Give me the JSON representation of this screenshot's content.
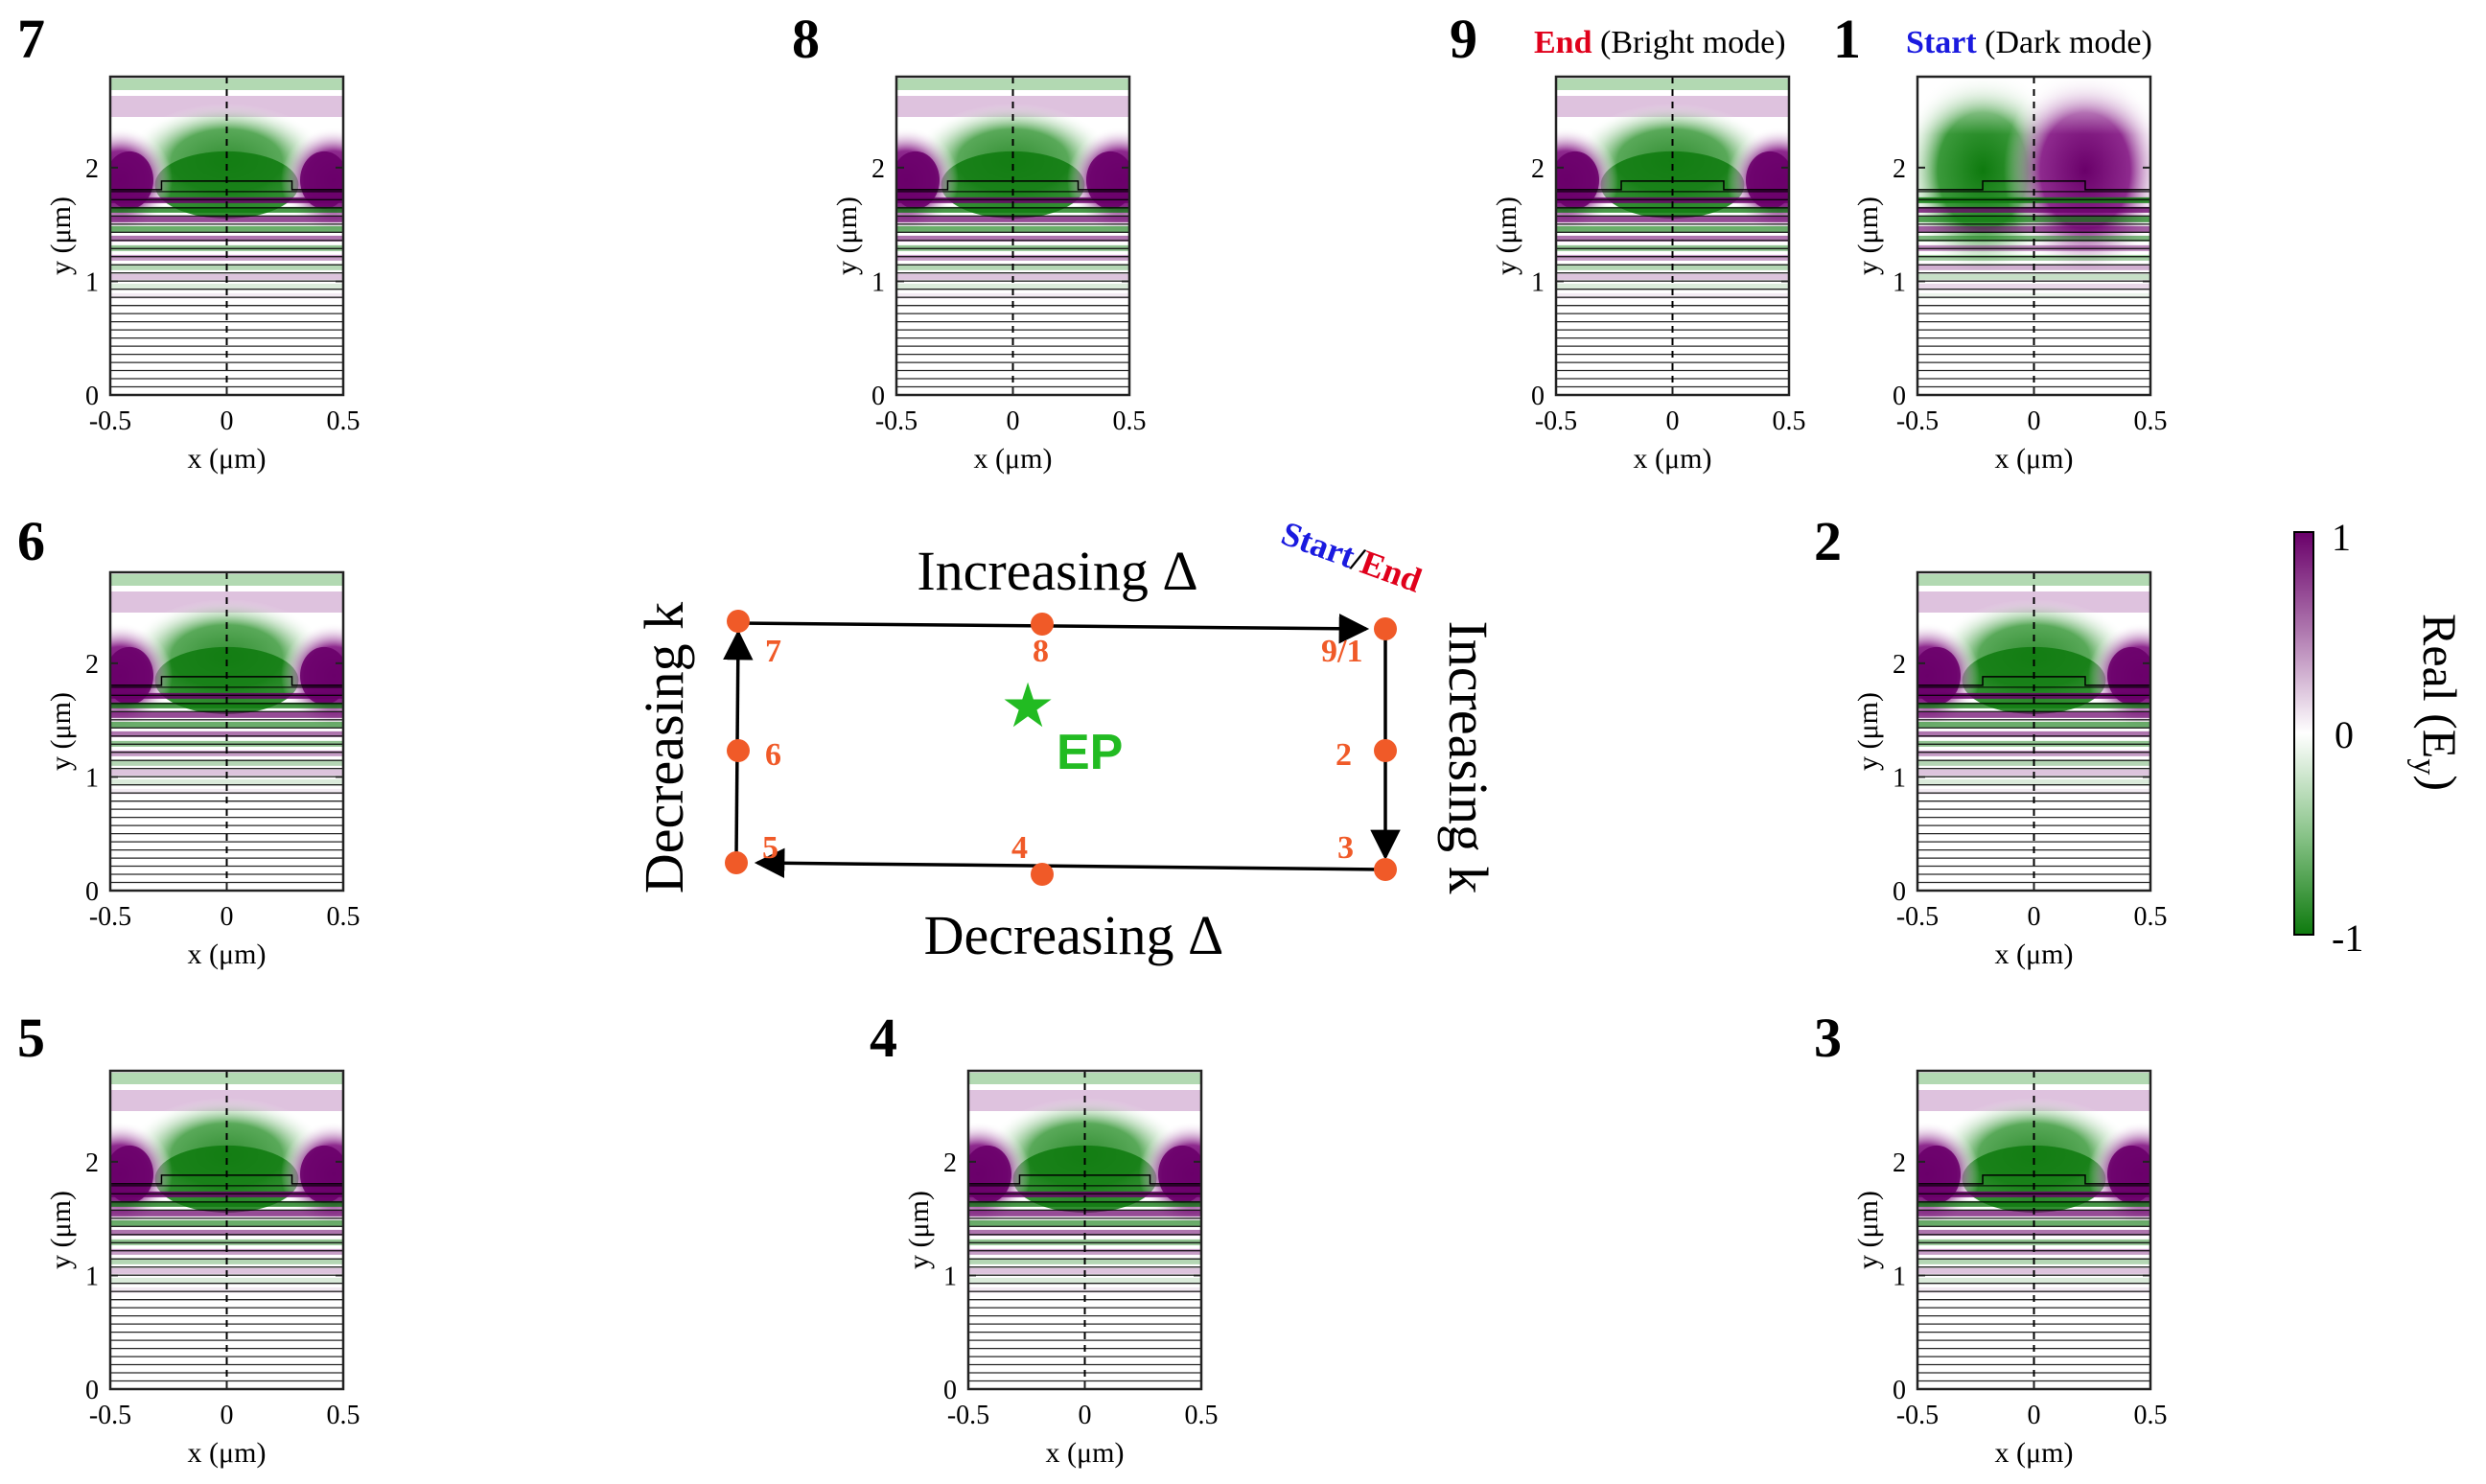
{
  "figure": {
    "colorbar": {
      "label": "Real (E",
      "label_sub": "y",
      "label_close": ")",
      "max_label": "1",
      "mid_label": "0",
      "min_label": "-1",
      "colors": {
        "max": "#6a006a",
        "mid": "#ffffff",
        "min": "#0e7a0e"
      }
    },
    "panels": [
      {
        "id": "p7",
        "number": "7",
        "header_colored": "",
        "header_rest": ""
      },
      {
        "id": "p8",
        "number": "8",
        "header_colored": "",
        "header_rest": ""
      },
      {
        "id": "p9",
        "number": "9",
        "header_colored": "End",
        "header_color": "#e0001b",
        "header_rest": " (Bright mode)"
      },
      {
        "id": "p1",
        "number": "1",
        "header_colored": "Start",
        "header_color": "#1a1adf",
        "header_rest": " (Dark mode)"
      },
      {
        "id": "p6",
        "number": "6",
        "header_colored": "",
        "header_rest": ""
      },
      {
        "id": "p2",
        "number": "2",
        "header_colored": "",
        "header_rest": ""
      },
      {
        "id": "p5",
        "number": "5",
        "header_colored": "",
        "header_rest": ""
      },
      {
        "id": "p4",
        "number": "4",
        "header_colored": "",
        "header_rest": ""
      },
      {
        "id": "p3",
        "number": "3",
        "header_colored": "",
        "header_rest": ""
      }
    ],
    "axes": {
      "xlabel": "x (μm)",
      "ylabel": "y (μm)",
      "xticks": [
        "-0.5",
        "0",
        "0.5"
      ],
      "yticks": [
        "0",
        "1",
        "2"
      ]
    },
    "loop": {
      "top_label": "Increasing Δ",
      "bottom_label": "Decreasing Δ",
      "left_label": "Decreasing k",
      "right_label": "Increasing k",
      "corner_start": "Start",
      "corner_slash": "/",
      "corner_end": "End",
      "ep_label": "EP",
      "ep_color": "#22bb22",
      "point_color": "#f05a28",
      "points": [
        {
          "label": "7"
        },
        {
          "label": "8"
        },
        {
          "label": "9/1"
        },
        {
          "label": "6"
        },
        {
          "label": "2"
        },
        {
          "label": "5"
        },
        {
          "label": "4"
        },
        {
          "label": "3"
        }
      ]
    }
  }
}
